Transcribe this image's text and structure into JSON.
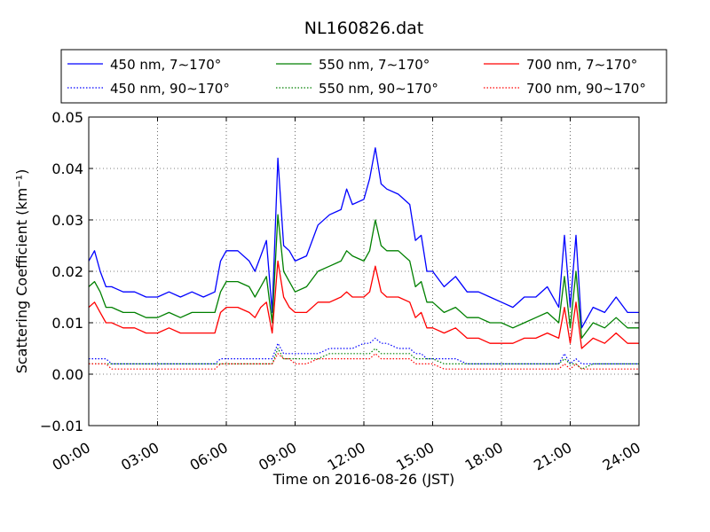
{
  "chart_data": {
    "type": "line",
    "title": "NL160826.dat",
    "xlabel": "Time on 2016-08-26 (JST)",
    "ylabel": "Scattering Coefficient (km⁻¹)",
    "x_unit": "hour of day (JST)",
    "xlim": [
      0,
      24
    ],
    "ylim": [
      -0.01,
      0.05
    ],
    "xticks": [
      0,
      3,
      6,
      9,
      12,
      15,
      18,
      21,
      24
    ],
    "xtick_labels": [
      "00:00",
      "03:00",
      "06:00",
      "09:00",
      "12:00",
      "15:00",
      "18:00",
      "21:00",
      "24:00"
    ],
    "yticks": [
      -0.01,
      0.0,
      0.01,
      0.02,
      0.03,
      0.04,
      0.05
    ],
    "ytick_labels": [
      "−0.01",
      "0.00",
      "0.01",
      "0.02",
      "0.03",
      "0.04",
      "0.05"
    ],
    "grid": true,
    "legend_position": "top",
    "legend_columns": 3,
    "x": [
      0.0,
      0.25,
      0.5,
      0.75,
      1.0,
      1.5,
      2.0,
      2.5,
      3.0,
      3.5,
      4.0,
      4.5,
      5.0,
      5.5,
      5.75,
      6.0,
      6.5,
      7.0,
      7.25,
      7.5,
      7.75,
      8.0,
      8.25,
      8.5,
      8.75,
      9.0,
      9.5,
      10.0,
      10.5,
      11.0,
      11.25,
      11.5,
      12.0,
      12.25,
      12.5,
      12.75,
      13.0,
      13.5,
      14.0,
      14.25,
      14.5,
      14.75,
      15.0,
      15.5,
      16.0,
      16.5,
      17.0,
      17.5,
      18.0,
      18.5,
      19.0,
      19.5,
      20.0,
      20.5,
      20.75,
      21.0,
      21.25,
      21.5,
      22.0,
      22.5,
      23.0,
      23.5,
      24.0
    ],
    "series": [
      {
        "name": "450 nm, 7∼170°",
        "color": "#0000ff",
        "style": "solid",
        "values": [
          0.022,
          0.024,
          0.02,
          0.017,
          0.017,
          0.016,
          0.016,
          0.015,
          0.015,
          0.016,
          0.015,
          0.016,
          0.015,
          0.016,
          0.022,
          0.024,
          0.024,
          0.022,
          0.02,
          0.023,
          0.026,
          0.012,
          0.042,
          0.025,
          0.024,
          0.022,
          0.023,
          0.029,
          0.031,
          0.032,
          0.036,
          0.033,
          0.034,
          0.038,
          0.044,
          0.037,
          0.036,
          0.035,
          0.033,
          0.026,
          0.027,
          0.02,
          0.02,
          0.017,
          0.019,
          0.016,
          0.016,
          0.015,
          0.014,
          0.013,
          0.015,
          0.015,
          0.017,
          0.013,
          0.027,
          0.013,
          0.027,
          0.009,
          0.013,
          0.012,
          0.015,
          0.012,
          0.012
        ]
      },
      {
        "name": "450 nm, 90∼170°",
        "color": "#0000ff",
        "style": "dotted",
        "values": [
          0.003,
          0.003,
          0.003,
          0.003,
          0.002,
          0.002,
          0.002,
          0.002,
          0.002,
          0.002,
          0.002,
          0.002,
          0.002,
          0.002,
          0.003,
          0.003,
          0.003,
          0.003,
          0.003,
          0.003,
          0.003,
          0.003,
          0.006,
          0.004,
          0.004,
          0.004,
          0.004,
          0.004,
          0.005,
          0.005,
          0.005,
          0.005,
          0.006,
          0.006,
          0.007,
          0.006,
          0.006,
          0.005,
          0.005,
          0.004,
          0.004,
          0.003,
          0.003,
          0.003,
          0.003,
          0.002,
          0.002,
          0.002,
          0.002,
          0.002,
          0.002,
          0.002,
          0.002,
          0.002,
          0.004,
          0.002,
          0.003,
          0.002,
          0.002,
          0.002,
          0.002,
          0.002,
          0.002
        ]
      },
      {
        "name": "550 nm, 7∼170°",
        "color": "#008000",
        "style": "solid",
        "values": [
          0.017,
          0.018,
          0.016,
          0.013,
          0.013,
          0.012,
          0.012,
          0.011,
          0.011,
          0.012,
          0.011,
          0.012,
          0.012,
          0.012,
          0.016,
          0.018,
          0.018,
          0.017,
          0.015,
          0.017,
          0.019,
          0.01,
          0.031,
          0.02,
          0.018,
          0.016,
          0.017,
          0.02,
          0.021,
          0.022,
          0.024,
          0.023,
          0.022,
          0.024,
          0.03,
          0.025,
          0.024,
          0.024,
          0.022,
          0.017,
          0.018,
          0.014,
          0.014,
          0.012,
          0.013,
          0.011,
          0.011,
          0.01,
          0.01,
          0.009,
          0.01,
          0.011,
          0.012,
          0.01,
          0.019,
          0.009,
          0.02,
          0.007,
          0.01,
          0.009,
          0.011,
          0.009,
          0.009
        ]
      },
      {
        "name": "550 nm, 90∼170°",
        "color": "#008000",
        "style": "dotted",
        "values": [
          0.002,
          0.002,
          0.002,
          0.002,
          0.002,
          0.002,
          0.002,
          0.002,
          0.002,
          0.002,
          0.002,
          0.002,
          0.002,
          0.002,
          0.002,
          0.002,
          0.002,
          0.002,
          0.002,
          0.002,
          0.002,
          0.002,
          0.005,
          0.003,
          0.003,
          0.003,
          0.003,
          0.003,
          0.004,
          0.004,
          0.004,
          0.004,
          0.004,
          0.004,
          0.005,
          0.004,
          0.004,
          0.004,
          0.004,
          0.003,
          0.003,
          0.003,
          0.003,
          0.002,
          0.002,
          0.002,
          0.002,
          0.002,
          0.002,
          0.002,
          0.002,
          0.002,
          0.002,
          0.002,
          0.003,
          0.002,
          0.002,
          0.001,
          0.002,
          0.002,
          0.002,
          0.002,
          0.002
        ]
      },
      {
        "name": "700 nm, 7∼170°",
        "color": "#ff0000",
        "style": "solid",
        "values": [
          0.013,
          0.014,
          0.012,
          0.01,
          0.01,
          0.009,
          0.009,
          0.008,
          0.008,
          0.009,
          0.008,
          0.008,
          0.008,
          0.008,
          0.012,
          0.013,
          0.013,
          0.012,
          0.011,
          0.013,
          0.014,
          0.008,
          0.022,
          0.015,
          0.013,
          0.012,
          0.012,
          0.014,
          0.014,
          0.015,
          0.016,
          0.015,
          0.015,
          0.016,
          0.021,
          0.016,
          0.015,
          0.015,
          0.014,
          0.011,
          0.012,
          0.009,
          0.009,
          0.008,
          0.009,
          0.007,
          0.007,
          0.006,
          0.006,
          0.006,
          0.007,
          0.007,
          0.008,
          0.007,
          0.013,
          0.006,
          0.014,
          0.005,
          0.007,
          0.006,
          0.008,
          0.006,
          0.006
        ]
      },
      {
        "name": "700 nm, 90∼170°",
        "color": "#ff0000",
        "style": "dotted",
        "values": [
          0.002,
          0.002,
          0.002,
          0.002,
          0.001,
          0.001,
          0.001,
          0.001,
          0.001,
          0.001,
          0.001,
          0.001,
          0.001,
          0.001,
          0.002,
          0.002,
          0.002,
          0.002,
          0.002,
          0.002,
          0.002,
          0.002,
          0.004,
          0.003,
          0.003,
          0.002,
          0.002,
          0.003,
          0.003,
          0.003,
          0.003,
          0.003,
          0.003,
          0.003,
          0.004,
          0.003,
          0.003,
          0.003,
          0.003,
          0.002,
          0.002,
          0.002,
          0.002,
          0.001,
          0.001,
          0.001,
          0.001,
          0.001,
          0.001,
          0.001,
          0.001,
          0.001,
          0.001,
          0.001,
          0.002,
          0.001,
          0.002,
          0.001,
          0.001,
          0.001,
          0.001,
          0.001,
          0.001
        ]
      }
    ]
  }
}
